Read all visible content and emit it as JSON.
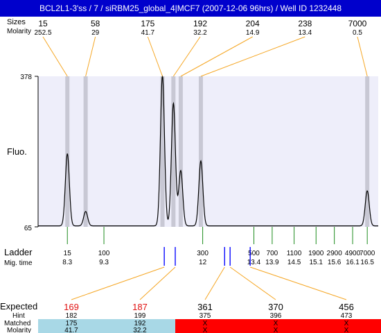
{
  "header": {
    "title": "BCL2L1-3'ss / 7 / siRBM25_global_4|MCF7 (2007-12-06 96hrs) / Well ID 1232448"
  },
  "labels": {
    "sizes": "Sizes",
    "molarity": "Molarity",
    "fluo": "Fluo.",
    "ladder": "Ladder",
    "mig_time": "Mig. time",
    "expected": "Expected",
    "hint": "Hint",
    "matched": "Matched",
    "molarity_bottom": "Molarity"
  },
  "colors": {
    "header_bg": "#0000cc",
    "plot_bg": "#eeeefa",
    "peak_band": "#c8c8d4",
    "orange": "#f5a623",
    "green": "#1e8c1e",
    "blue": "#1a1aff",
    "expected_red_text": "#e01010",
    "matched_bg": "#a8d8e6",
    "unmatched_bg": "#ff0000"
  },
  "chart_data": {
    "type": "electropherogram",
    "y_axis": {
      "label": "Fluo.",
      "min": 65,
      "max": 378
    },
    "peaks": [
      {
        "size": "15",
        "molarity": "252.5",
        "mig_time": 8.3,
        "height": 215
      },
      {
        "size": "58",
        "molarity": "29",
        "mig_time": 8.8,
        "height": 95
      },
      {
        "size": "175",
        "molarity": "41.7",
        "mig_time": 10.9,
        "height": 378
      },
      {
        "size": "192",
        "molarity": "32.2",
        "mig_time": 11.2,
        "height": 320
      },
      {
        "size": "204",
        "molarity": "14.9",
        "mig_time": 11.4,
        "height": 180
      },
      {
        "size": "238",
        "molarity": "13.4",
        "mig_time": 11.95,
        "height": 200
      },
      {
        "size": "7000",
        "molarity": "0.5",
        "mig_time": 16.5,
        "height": 138
      }
    ],
    "ladder": [
      {
        "size": "15",
        "mig_time": "8.3"
      },
      {
        "size": "100",
        "mig_time": "9.3"
      },
      {
        "size": "300",
        "mig_time": "12"
      },
      {
        "size": "500",
        "mig_time": "13.4"
      },
      {
        "size": "700",
        "mig_time": "13.9"
      },
      {
        "size": "1100",
        "mig_time": "14.5"
      },
      {
        "size": "1900",
        "mig_time": "15.1"
      },
      {
        "size": "2900",
        "mig_time": "15.6"
      },
      {
        "size": "4900",
        "mig_time": "16.1"
      },
      {
        "size": "7000",
        "mig_time": "16.5"
      }
    ],
    "expected": [
      {
        "expected": "169",
        "hint": "182",
        "matched": "175",
        "molarity": "41.7",
        "status": "matched",
        "mig_time": 10.95,
        "highlight": true
      },
      {
        "expected": "187",
        "hint": "199",
        "matched": "192",
        "molarity": "32.2",
        "status": "matched",
        "mig_time": 11.25,
        "highlight": true
      },
      {
        "expected": "361",
        "hint": "375",
        "matched": "X",
        "molarity": "X",
        "status": "unmatched",
        "mig_time": 12.6,
        "highlight": false
      },
      {
        "expected": "370",
        "hint": "396",
        "matched": "X",
        "molarity": "X",
        "status": "unmatched",
        "mig_time": 12.75,
        "highlight": false
      },
      {
        "expected": "456",
        "hint": "473",
        "matched": "X",
        "molarity": "X",
        "status": "unmatched",
        "mig_time": 13.3,
        "highlight": false
      }
    ]
  }
}
